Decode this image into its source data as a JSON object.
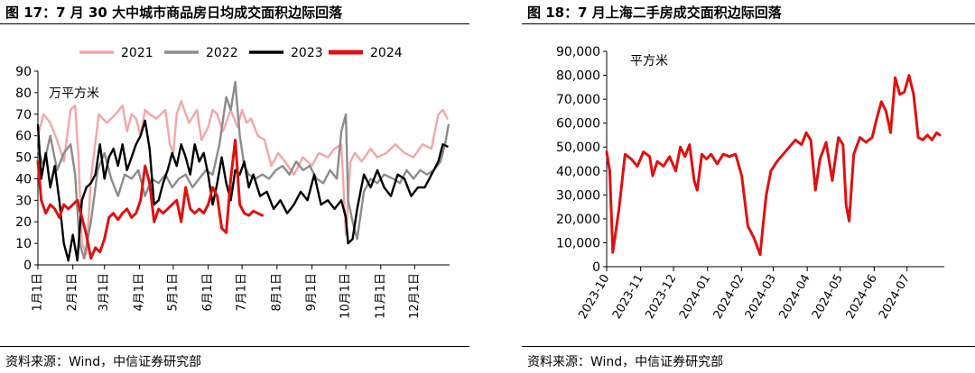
{
  "left": {
    "title": "图 17：7 月 30 大中城市商品房日均成交面积边际回落",
    "source": "资料来源：Wind，中信证券研究部",
    "unit_label": "万平方米"
  },
  "right": {
    "title": "图 18：7 月上海二手房成交面积边际回落",
    "source": "资料来源：Wind，中信证券研究部",
    "unit_label": "平方米"
  },
  "colors": {
    "s2021": "#f4a6a6",
    "s2022": "#8c8c8c",
    "s2023": "#000000",
    "s2024": "#e01010",
    "right_line": "#e01010",
    "axis": "#000000"
  },
  "chart_data": [
    {
      "type": "line",
      "title": "",
      "ylim": [
        0,
        90
      ],
      "yticks": [
        0,
        10,
        20,
        30,
        40,
        50,
        60,
        70,
        80,
        90
      ],
      "xlim": [
        1,
        366
      ],
      "x_ticks": [
        {
          "label": "1月1日",
          "day": 1
        },
        {
          "label": "2月1日",
          "day": 32
        },
        {
          "label": "3月1日",
          "day": 60
        },
        {
          "label": "4月1日",
          "day": 91
        },
        {
          "label": "5月1日",
          "day": 121
        },
        {
          "label": "6月1日",
          "day": 152
        },
        {
          "label": "7月1日",
          "day": 182
        },
        {
          "label": "8月1日",
          "day": 213
        },
        {
          "label": "9月1日",
          "day": 244
        },
        {
          "label": "10月1日",
          "day": 274
        },
        {
          "label": "11月1日",
          "day": 305
        },
        {
          "label": "12月1日",
          "day": 335
        }
      ],
      "legend_position": "top",
      "series": [
        {
          "name": "2021",
          "x": [
            1,
            6,
            12,
            18,
            24,
            30,
            34,
            37,
            40,
            44,
            48,
            55,
            62,
            70,
            76,
            80,
            84,
            88,
            92,
            96,
            100,
            106,
            114,
            118,
            121,
            124,
            128,
            135,
            142,
            146,
            152,
            156,
            160,
            165,
            172,
            178,
            182,
            186,
            190,
            196,
            202,
            208,
            214,
            220,
            228,
            236,
            244,
            250,
            258,
            264,
            270,
            274,
            278,
            282,
            288,
            296,
            302,
            310,
            318,
            326,
            334,
            342,
            350,
            356,
            360,
            364
          ],
          "values": [
            60,
            70,
            66,
            58,
            48,
            72,
            74,
            50,
            10,
            5,
            40,
            70,
            66,
            70,
            74,
            62,
            70,
            68,
            60,
            72,
            70,
            68,
            72,
            56,
            52,
            70,
            76,
            66,
            72,
            58,
            64,
            72,
            70,
            62,
            72,
            64,
            72,
            66,
            68,
            60,
            58,
            46,
            52,
            48,
            42,
            50,
            46,
            52,
            50,
            54,
            56,
            14,
            48,
            52,
            48,
            54,
            50,
            52,
            56,
            52,
            50,
            56,
            54,
            70,
            72,
            68
          ]
        },
        {
          "name": "2022",
          "x": [
            1,
            6,
            12,
            18,
            24,
            30,
            34,
            38,
            42,
            48,
            54,
            60,
            66,
            72,
            78,
            84,
            90,
            96,
            102,
            108,
            114,
            120,
            126,
            132,
            138,
            144,
            150,
            156,
            162,
            168,
            172,
            176,
            180,
            184,
            188,
            194,
            200,
            206,
            212,
            218,
            224,
            230,
            236,
            242,
            248,
            254,
            260,
            266,
            270,
            274,
            276,
            280,
            284,
            290,
            296,
            302,
            308,
            316,
            322,
            328,
            334,
            340,
            346,
            352,
            358,
            362,
            365
          ],
          "values": [
            54,
            46,
            60,
            44,
            52,
            56,
            42,
            10,
            3,
            20,
            44,
            52,
            40,
            32,
            42,
            40,
            44,
            32,
            40,
            38,
            42,
            36,
            40,
            42,
            36,
            40,
            44,
            42,
            56,
            78,
            72,
            85,
            60,
            46,
            42,
            40,
            42,
            40,
            44,
            46,
            42,
            48,
            44,
            46,
            40,
            38,
            44,
            40,
            62,
            70,
            30,
            20,
            12,
            34,
            40,
            38,
            42,
            40,
            38,
            44,
            40,
            44,
            42,
            44,
            48,
            56,
            65
          ]
        },
        {
          "name": "2023",
          "x": [
            1,
            4,
            8,
            12,
            16,
            20,
            24,
            28,
            32,
            36,
            40,
            44,
            48,
            52,
            56,
            60,
            64,
            68,
            72,
            76,
            80,
            84,
            88,
            92,
            96,
            100,
            104,
            108,
            112,
            116,
            120,
            124,
            128,
            132,
            136,
            140,
            144,
            148,
            152,
            156,
            160,
            164,
            168,
            172,
            176,
            180,
            184,
            188,
            192,
            198,
            204,
            210,
            216,
            222,
            228,
            234,
            240,
            246,
            252,
            258,
            264,
            270,
            274,
            276,
            280,
            284,
            290,
            296,
            302,
            308,
            314,
            320,
            326,
            332,
            338,
            344,
            350,
            356,
            360,
            364
          ],
          "values": [
            65,
            40,
            52,
            36,
            46,
            30,
            10,
            2,
            14,
            2,
            30,
            36,
            38,
            42,
            56,
            40,
            50,
            54,
            46,
            56,
            44,
            50,
            56,
            60,
            67,
            54,
            28,
            30,
            38,
            44,
            52,
            46,
            56,
            50,
            42,
            56,
            48,
            52,
            42,
            28,
            38,
            50,
            38,
            30,
            44,
            42,
            48,
            36,
            42,
            32,
            34,
            26,
            30,
            24,
            28,
            34,
            30,
            42,
            28,
            30,
            26,
            30,
            22,
            10,
            12,
            26,
            42,
            36,
            44,
            36,
            32,
            42,
            40,
            32,
            36,
            36,
            42,
            48,
            56,
            55
          ]
        },
        {
          "name": "2024",
          "x": [
            1,
            4,
            8,
            12,
            16,
            20,
            24,
            28,
            32,
            36,
            40,
            44,
            48,
            52,
            56,
            60,
            64,
            68,
            72,
            76,
            80,
            84,
            88,
            92,
            96,
            100,
            104,
            108,
            112,
            116,
            120,
            124,
            128,
            132,
            136,
            140,
            144,
            148,
            152,
            156,
            160,
            164,
            168,
            172,
            176,
            180,
            184,
            188,
            192,
            196,
            200
          ],
          "values": [
            48,
            30,
            24,
            28,
            26,
            22,
            28,
            26,
            28,
            30,
            22,
            14,
            3,
            8,
            6,
            12,
            22,
            24,
            21,
            24,
            26,
            22,
            24,
            30,
            46,
            38,
            20,
            26,
            24,
            26,
            28,
            30,
            20,
            36,
            26,
            24,
            26,
            24,
            28,
            36,
            32,
            17,
            15,
            40,
            58,
            28,
            24,
            23,
            25,
            24,
            23
          ]
        }
      ]
    },
    {
      "type": "line",
      "title": "",
      "ylim": [
        0,
        90000
      ],
      "yticks": [
        0,
        10000,
        20000,
        30000,
        40000,
        50000,
        60000,
        70000,
        80000,
        90000
      ],
      "ytick_labels": [
        "0",
        "10,000",
        "20,000",
        "30,000",
        "40,000",
        "50,000",
        "60,000",
        "70,000",
        "80,000",
        "90,000"
      ],
      "xlim": [
        0,
        44
      ],
      "x_ticks": [
        {
          "label": "2023-10",
          "week": 0
        },
        {
          "label": "2023-11",
          "week": 4.43
        },
        {
          "label": "2023-12",
          "week": 8.71
        },
        {
          "label": "2024-01",
          "week": 13.14
        },
        {
          "label": "2024-02",
          "week": 17.57
        },
        {
          "label": "2024-03",
          "week": 21.71
        },
        {
          "label": "2024-04",
          "week": 26.14
        },
        {
          "label": "2024-05",
          "week": 30.43
        },
        {
          "label": "2024-06",
          "week": 34.86
        },
        {
          "label": "2024-07",
          "week": 39.14
        }
      ],
      "series": [
        {
          "x": [
            0,
            0.4,
            0.8,
            1.6,
            2.4,
            3.2,
            4.0,
            4.8,
            5.6,
            6.0,
            6.6,
            7.4,
            8.2,
            9.0,
            9.6,
            10.2,
            10.8,
            11.4,
            11.8,
            12.4,
            13.0,
            13.6,
            14.4,
            15.2,
            16.0,
            16.8,
            17.6,
            18.4,
            19.2,
            20.0,
            20.4,
            20.8,
            21.4,
            22.2,
            23.0,
            23.8,
            24.6,
            25.4,
            26.0,
            26.6,
            27.2,
            27.8,
            28.6,
            29.4,
            30.2,
            30.8,
            31.2,
            31.6,
            32.2,
            33.0,
            33.8,
            34.6,
            35.2,
            35.8,
            36.4,
            37.0,
            37.6,
            38.2,
            38.8,
            39.4,
            40.0,
            40.6,
            41.2,
            41.8,
            42.4,
            43.0,
            43.4
          ],
          "values": [
            48000,
            40000,
            6000,
            24000,
            47000,
            45000,
            42000,
            48000,
            46000,
            38000,
            44000,
            42000,
            46000,
            40000,
            50000,
            46000,
            51000,
            36000,
            32000,
            47000,
            45000,
            47000,
            43000,
            47000,
            46000,
            47000,
            38000,
            17000,
            12000,
            5000,
            18000,
            30000,
            40000,
            44000,
            47000,
            50000,
            53000,
            51000,
            56000,
            53000,
            32000,
            45000,
            52000,
            36000,
            54000,
            51000,
            26000,
            19000,
            47000,
            54000,
            52000,
            54000,
            62000,
            69000,
            65000,
            56000,
            79000,
            72000,
            73000,
            80000,
            72000,
            54000,
            53000,
            55000,
            53000,
            56000,
            55000
          ]
        }
      ]
    }
  ]
}
